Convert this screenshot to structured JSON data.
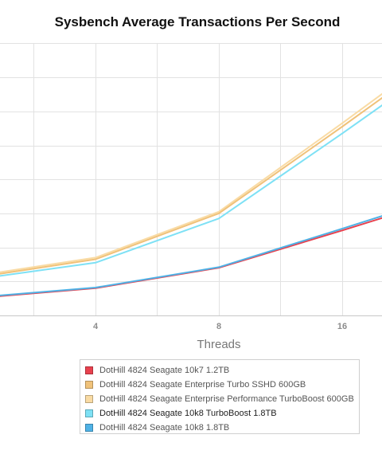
{
  "chart_data": {
    "type": "line",
    "title": "Sysbench Average Transactions Per Second",
    "xlabel": "Threads",
    "ylabel": "",
    "x": [
      2,
      4,
      8,
      16
    ],
    "x_ticks": [
      "4",
      "8",
      "16"
    ],
    "grid": true,
    "legend_position": "bottom",
    "series": [
      {
        "name": "DotHill 4824 Seagate 10k7 1.2TB",
        "color": "#e8414e",
        "values": [
          0.5,
          0.8,
          1.4,
          2.5
        ]
      },
      {
        "name": "DotHill 4824 Seagate Enterprise Turbo SSHD 600GB",
        "color": "#f0c27a",
        "values": [
          1.1,
          1.65,
          3.0,
          5.55
        ]
      },
      {
        "name": "DotHill 4824 Seagate Enterprise Performance TurboBoost 600GB",
        "color": "#f9dba4",
        "values": [
          1.15,
          1.7,
          3.05,
          5.65
        ]
      },
      {
        "name": "DotHill 4824 Seagate 10k8 TurboBoost 1.8TB",
        "color": "#7ee1f5",
        "values": [
          1.05,
          1.55,
          2.85,
          5.35
        ]
      },
      {
        "name": "DotHill 4824 Seagate 10k8 1.8TB",
        "color": "#4fb2e6",
        "values": [
          0.52,
          0.82,
          1.42,
          2.55
        ]
      }
    ]
  }
}
